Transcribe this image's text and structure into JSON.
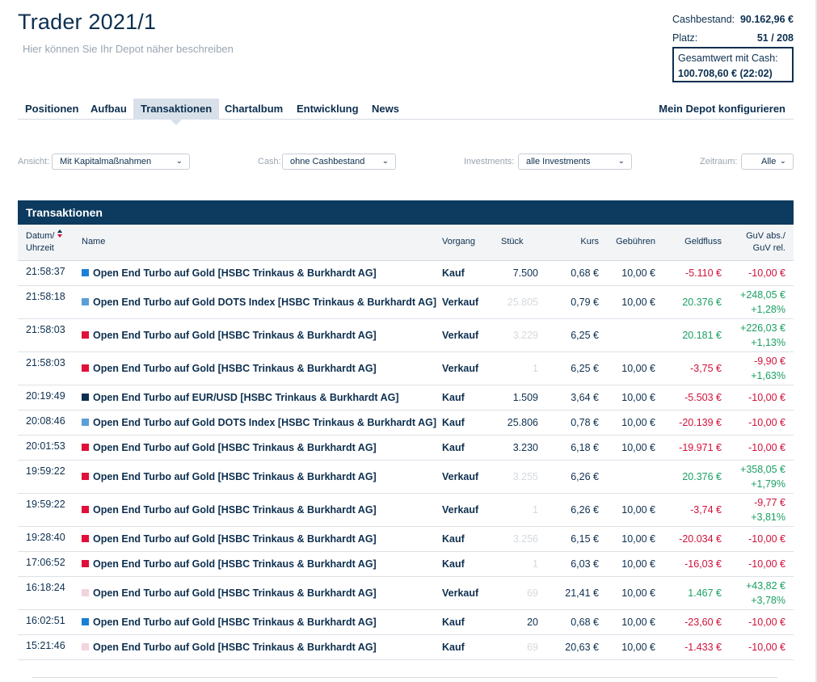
{
  "header": {
    "title": "Trader 2021/1",
    "subtitle": "Hier können Sie Ihr Depot näher beschreiben"
  },
  "stats": {
    "cash_label": "Cashbestand:",
    "cash_value": "90.162,96 €",
    "rank_label": "Platz:",
    "rank_value": "51 / 208",
    "total_label": "Gesamtwert mit Cash:",
    "total_value": "100.708,60 € (22:02)"
  },
  "tabs": [
    {
      "label": "Positionen"
    },
    {
      "label": "Aufbau"
    },
    {
      "label": "Transaktionen",
      "active": true
    },
    {
      "label": "Chartalbum"
    },
    {
      "label": "Entwicklung"
    },
    {
      "label": "News"
    }
  ],
  "configure_label": "Mein Depot konfigurieren",
  "filters": {
    "ansicht_label": "Ansicht:",
    "ansicht_value": "Mit Kapitalmaßnahmen",
    "cash_label": "Cash:",
    "cash_value": "ohne Cashbestand",
    "investments_label": "Investments:",
    "investments_value": "alle Investments",
    "zeitraum_label": "Zeitraum:",
    "zeitraum_value": "Alle"
  },
  "panel_title": "Transaktionen",
  "columns": {
    "datum": "Datum/",
    "uhrzeit": "Uhrzeit",
    "name": "Name",
    "vorgang": "Vorgang",
    "stueck": "Stück",
    "kurs": "Kurs",
    "gebuehren": "Gebühren",
    "geldfluss": "Geldfluss",
    "guv_abs": "GuV abs./",
    "guv_rel": "GuV rel."
  },
  "colors": {
    "navy": "#0d3a5f",
    "negative": "#d0113a",
    "positive": "#1aa063",
    "blue_square": "#1a7fd6",
    "lightblue_square": "#5a9fd8",
    "red_square": "#e0103a",
    "navy_square": "#0d2f4f",
    "pink_square": "#f2d4de"
  },
  "rows": [
    {
      "time": "21:58:37",
      "color": "#1a7fd6",
      "name": "Open End Turbo auf Gold [HSBC Trinkaus & Burkhardt AG]",
      "vorgang": "Kauf",
      "stueck": "7.500",
      "stueck_faded": false,
      "kurs": "0,68 €",
      "gebuehren": "10,00 €",
      "geldfluss": "-5.110 €",
      "geldfluss_sign": "neg",
      "guv_abs": "-10,00 €",
      "guv_abs_sign": "neg",
      "guv_rel": "",
      "guv_rel_sign": ""
    },
    {
      "time": "21:58:18",
      "color": "#5a9fd8",
      "name": "Open End Turbo auf Gold DOTS Index [HSBC Trinkaus & Burkhardt AG]",
      "vorgang": "Verkauf",
      "stueck": "25.805",
      "stueck_faded": true,
      "kurs": "0,79 €",
      "gebuehren": "10,00 €",
      "geldfluss": "20.376 €",
      "geldfluss_sign": "pos",
      "guv_abs": "+248,05 €",
      "guv_abs_sign": "pos",
      "guv_rel": "+1,28%",
      "guv_rel_sign": "pos"
    },
    {
      "time": "21:58:03",
      "color": "#e0103a",
      "name": "Open End Turbo auf Gold [HSBC Trinkaus & Burkhardt AG]",
      "vorgang": "Verkauf",
      "stueck": "3.229",
      "stueck_faded": true,
      "kurs": "6,25 €",
      "gebuehren": "",
      "geldfluss": "20.181 €",
      "geldfluss_sign": "pos",
      "guv_abs": "+226,03 €",
      "guv_abs_sign": "pos",
      "guv_rel": "+1,13%",
      "guv_rel_sign": "pos"
    },
    {
      "time": "21:58:03",
      "color": "#e0103a",
      "name": "Open End Turbo auf Gold [HSBC Trinkaus & Burkhardt AG]",
      "vorgang": "Verkauf",
      "stueck": "1",
      "stueck_faded": true,
      "kurs": "6,25 €",
      "gebuehren": "10,00 €",
      "geldfluss": "-3,75 €",
      "geldfluss_sign": "neg",
      "guv_abs": "-9,90 €",
      "guv_abs_sign": "neg",
      "guv_rel": "+1,63%",
      "guv_rel_sign": "pos"
    },
    {
      "time": "20:19:49",
      "color": "#0d2f4f",
      "name": "Open End Turbo auf EUR/USD [HSBC Trinkaus & Burkhardt AG]",
      "vorgang": "Kauf",
      "stueck": "1.509",
      "stueck_faded": false,
      "kurs": "3,64 €",
      "gebuehren": "10,00 €",
      "geldfluss": "-5.503 €",
      "geldfluss_sign": "neg",
      "guv_abs": "-10,00 €",
      "guv_abs_sign": "neg",
      "guv_rel": "",
      "guv_rel_sign": ""
    },
    {
      "time": "20:08:46",
      "color": "#5a9fd8",
      "name": "Open End Turbo auf Gold DOTS Index [HSBC Trinkaus & Burkhardt AG]",
      "vorgang": "Kauf",
      "stueck": "25.806",
      "stueck_faded": false,
      "kurs": "0,78 €",
      "gebuehren": "10,00 €",
      "geldfluss": "-20.139 €",
      "geldfluss_sign": "neg",
      "guv_abs": "-10,00 €",
      "guv_abs_sign": "neg",
      "guv_rel": "",
      "guv_rel_sign": ""
    },
    {
      "time": "20:01:53",
      "color": "#e0103a",
      "name": "Open End Turbo auf Gold [HSBC Trinkaus & Burkhardt AG]",
      "vorgang": "Kauf",
      "stueck": "3.230",
      "stueck_faded": false,
      "kurs": "6,18 €",
      "gebuehren": "10,00 €",
      "geldfluss": "-19.971 €",
      "geldfluss_sign": "neg",
      "guv_abs": "-10,00 €",
      "guv_abs_sign": "neg",
      "guv_rel": "",
      "guv_rel_sign": ""
    },
    {
      "time": "19:59:22",
      "color": "#e0103a",
      "name": "Open End Turbo auf Gold [HSBC Trinkaus & Burkhardt AG]",
      "vorgang": "Verkauf",
      "stueck": "3.255",
      "stueck_faded": true,
      "kurs": "6,26 €",
      "gebuehren": "",
      "geldfluss": "20.376 €",
      "geldfluss_sign": "pos",
      "guv_abs": "+358,05 €",
      "guv_abs_sign": "pos",
      "guv_rel": "+1,79%",
      "guv_rel_sign": "pos"
    },
    {
      "time": "19:59:22",
      "color": "#e0103a",
      "name": "Open End Turbo auf Gold [HSBC Trinkaus & Burkhardt AG]",
      "vorgang": "Verkauf",
      "stueck": "1",
      "stueck_faded": true,
      "kurs": "6,26 €",
      "gebuehren": "10,00 €",
      "geldfluss": "-3,74 €",
      "geldfluss_sign": "neg",
      "guv_abs": "-9,77 €",
      "guv_abs_sign": "neg",
      "guv_rel": "+3,81%",
      "guv_rel_sign": "pos"
    },
    {
      "time": "19:28:40",
      "color": "#e0103a",
      "name": "Open End Turbo auf Gold [HSBC Trinkaus & Burkhardt AG]",
      "vorgang": "Kauf",
      "stueck": "3.256",
      "stueck_faded": true,
      "kurs": "6,15 €",
      "gebuehren": "10,00 €",
      "geldfluss": "-20.034 €",
      "geldfluss_sign": "neg",
      "guv_abs": "-10,00 €",
      "guv_abs_sign": "neg",
      "guv_rel": "",
      "guv_rel_sign": ""
    },
    {
      "time": "17:06:52",
      "color": "#e0103a",
      "name": "Open End Turbo auf Gold [HSBC Trinkaus & Burkhardt AG]",
      "vorgang": "Kauf",
      "stueck": "1",
      "stueck_faded": true,
      "kurs": "6,03 €",
      "gebuehren": "10,00 €",
      "geldfluss": "-16,03 €",
      "geldfluss_sign": "neg",
      "guv_abs": "-10,00 €",
      "guv_abs_sign": "neg",
      "guv_rel": "",
      "guv_rel_sign": ""
    },
    {
      "time": "16:18:24",
      "color": "#f2d4de",
      "name": "Open End Turbo auf Gold [HSBC Trinkaus & Burkhardt AG]",
      "vorgang": "Verkauf",
      "stueck": "69",
      "stueck_faded": true,
      "kurs": "21,41 €",
      "gebuehren": "10,00 €",
      "geldfluss": "1.467 €",
      "geldfluss_sign": "pos",
      "guv_abs": "+43,82 €",
      "guv_abs_sign": "pos",
      "guv_rel": "+3,78%",
      "guv_rel_sign": "pos"
    },
    {
      "time": "16:02:51",
      "color": "#1a7fd6",
      "name": "Open End Turbo auf Gold [HSBC Trinkaus & Burkhardt AG]",
      "vorgang": "Kauf",
      "stueck": "20",
      "stueck_faded": false,
      "kurs": "0,68 €",
      "gebuehren": "10,00 €",
      "geldfluss": "-23,60 €",
      "geldfluss_sign": "neg",
      "guv_abs": "-10,00 €",
      "guv_abs_sign": "neg",
      "guv_rel": "",
      "guv_rel_sign": ""
    },
    {
      "time": "15:21:46",
      "color": "#f2d4de",
      "name": "Open End Turbo auf Gold [HSBC Trinkaus & Burkhardt AG]",
      "vorgang": "Kauf",
      "stueck": "69",
      "stueck_faded": true,
      "kurs": "20,63 €",
      "gebuehren": "10,00 €",
      "geldfluss": "-1.433 €",
      "geldfluss_sign": "neg",
      "guv_abs": "-10,00 €",
      "guv_abs_sign": "neg",
      "guv_rel": "",
      "guv_rel_sign": ""
    }
  ]
}
